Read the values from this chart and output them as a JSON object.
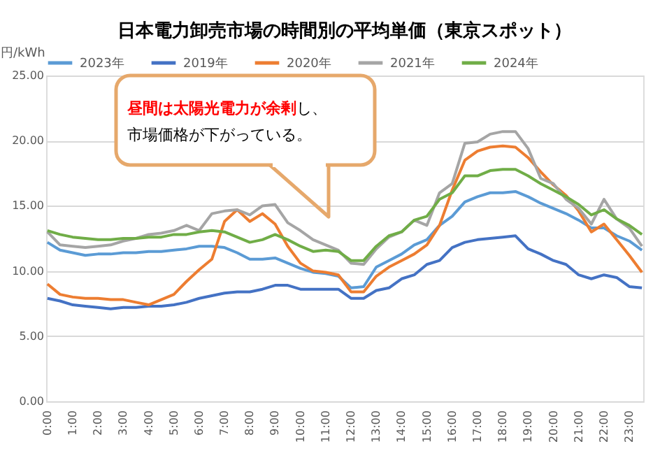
{
  "chart_data": {
    "type": "line",
    "title": "日本電力卸売市場の時間別の平均単価（東京スポット）",
    "ylabel": "円/kWh",
    "categories": [
      "0:00",
      null,
      "1:00",
      null,
      "2:00",
      null,
      "3:00",
      null,
      "4:00",
      null,
      "5:00",
      null,
      "6:00",
      null,
      "7:00",
      null,
      "8:00",
      null,
      "9:00",
      null,
      "10:00",
      null,
      "11:00",
      null,
      "12:00",
      null,
      "13:00",
      null,
      "14:00",
      null,
      "15:00",
      null,
      "16:00",
      null,
      "17:00",
      null,
      "18:00",
      null,
      "19:00",
      null,
      "20:00",
      null,
      "21:00",
      null,
      "22:00",
      null,
      "23:00",
      null
    ],
    "series": [
      {
        "name": "2023年",
        "color": "#5b9bd5",
        "values": [
          12.2,
          11.6,
          11.4,
          11.2,
          11.3,
          11.3,
          11.4,
          11.4,
          11.5,
          11.5,
          11.6,
          11.7,
          11.9,
          11.9,
          11.8,
          11.4,
          10.9,
          10.9,
          11.0,
          10.6,
          10.2,
          9.9,
          9.8,
          9.6,
          8.7,
          8.8,
          10.3,
          10.8,
          11.3,
          12.0,
          12.4,
          13.5,
          14.2,
          15.3,
          15.7,
          16.0,
          16.0,
          16.1,
          15.7,
          15.2,
          14.8,
          14.4,
          13.9,
          13.3,
          13.3,
          12.7,
          12.3,
          11.6
        ]
      },
      {
        "name": "2019年",
        "color": "#4472c4",
        "values": [
          7.9,
          7.7,
          7.4,
          7.3,
          7.2,
          7.1,
          7.2,
          7.2,
          7.3,
          7.3,
          7.4,
          7.6,
          7.9,
          8.1,
          8.3,
          8.4,
          8.4,
          8.6,
          8.9,
          8.9,
          8.6,
          8.6,
          8.6,
          8.6,
          7.9,
          7.9,
          8.5,
          8.7,
          9.4,
          9.7,
          10.5,
          10.8,
          11.8,
          12.2,
          12.4,
          12.5,
          12.6,
          12.7,
          11.7,
          11.3,
          10.8,
          10.5,
          9.7,
          9.4,
          9.7,
          9.5,
          8.8,
          8.7
        ]
      },
      {
        "name": "2020年",
        "color": "#ed7d31",
        "values": [
          9.0,
          8.2,
          8.0,
          7.9,
          7.9,
          7.8,
          7.8,
          7.6,
          7.4,
          7.8,
          8.2,
          9.2,
          10.1,
          10.9,
          13.8,
          14.7,
          13.8,
          14.4,
          13.6,
          11.9,
          10.6,
          10.0,
          9.9,
          9.7,
          8.4,
          8.4,
          9.6,
          10.3,
          10.8,
          11.3,
          12.0,
          13.5,
          16.2,
          18.5,
          19.2,
          19.5,
          19.6,
          19.5,
          18.7,
          17.6,
          16.6,
          15.8,
          14.6,
          13.0,
          13.6,
          12.4,
          11.2,
          9.9
        ]
      },
      {
        "name": "2021年",
        "color": "#a5a5a5",
        "values": [
          13.0,
          12.0,
          11.9,
          11.8,
          11.9,
          12.0,
          12.3,
          12.5,
          12.8,
          12.9,
          13.1,
          13.5,
          13.1,
          14.4,
          14.6,
          14.7,
          14.3,
          15.0,
          15.1,
          13.7,
          13.1,
          12.4,
          12.0,
          11.6,
          10.6,
          10.5,
          11.7,
          12.6,
          13.0,
          13.9,
          13.5,
          16.0,
          16.7,
          19.8,
          19.9,
          20.5,
          20.7,
          20.7,
          19.4,
          17.1,
          16.7,
          15.5,
          14.8,
          13.6,
          15.5,
          14.0,
          13.3,
          11.9
        ]
      },
      {
        "name": "2024年",
        "color": "#70ad47",
        "values": [
          13.1,
          12.8,
          12.6,
          12.5,
          12.4,
          12.4,
          12.5,
          12.5,
          12.6,
          12.6,
          12.8,
          12.8,
          13.0,
          13.1,
          13.0,
          12.6,
          12.2,
          12.4,
          12.8,
          12.4,
          11.9,
          11.5,
          11.6,
          11.5,
          10.8,
          10.8,
          11.9,
          12.7,
          13.0,
          13.9,
          14.2,
          15.5,
          16.0,
          17.3,
          17.3,
          17.7,
          17.8,
          17.8,
          17.3,
          16.7,
          16.2,
          15.7,
          15.1,
          14.3,
          14.7,
          14.0,
          13.5,
          12.8
        ]
      }
    ],
    "ylim": [
      0,
      25
    ],
    "yticks": [
      {
        "value": 0,
        "label": "0.00"
      },
      {
        "value": 5,
        "label": "5.00"
      },
      {
        "value": 10,
        "label": "10.00"
      },
      {
        "value": 15,
        "label": "15.00"
      },
      {
        "value": 20,
        "label": "20.00"
      },
      {
        "value": 25,
        "label": "25.00"
      }
    ],
    "grid": "y",
    "legend": "top",
    "marker": "none",
    "line_style": "solid",
    "annotations": [
      "昼間は太陽光電力が余剰",
      "し、",
      "市場価格が下がっている。"
    ]
  }
}
